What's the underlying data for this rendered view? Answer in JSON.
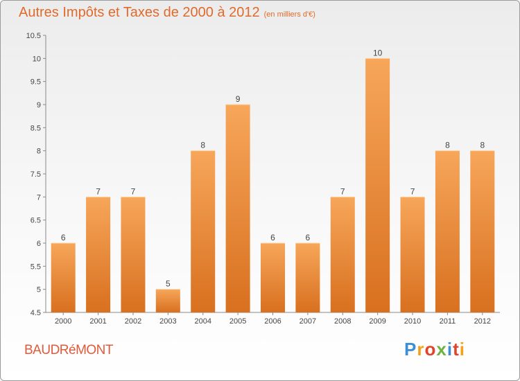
{
  "title": "Autres Impôts et Taxes de 2000 à 2012",
  "title_unit": "(en milliers d'€)",
  "commune": "BAUDRéMONT",
  "logo_text": [
    "P",
    "r",
    "o",
    "x",
    "i",
    "t",
    "i"
  ],
  "colors": {
    "title": "#e06a2b",
    "bar_top": "#f7a65a",
    "bar_bottom": "#d8701f",
    "axis": "#888888"
  },
  "chart_data": {
    "type": "bar",
    "categories": [
      "2000",
      "2001",
      "2002",
      "2003",
      "2004",
      "2005",
      "2006",
      "2007",
      "2008",
      "2009",
      "2010",
      "2011",
      "2012"
    ],
    "values": [
      6,
      7,
      7,
      5,
      8,
      9,
      6,
      6,
      7,
      10,
      7,
      8,
      8
    ],
    "data_labels": [
      "6",
      "7",
      "7",
      "5",
      "8",
      "9",
      "6",
      "6",
      "7",
      "10",
      "7",
      "8",
      "8"
    ],
    "ylim": [
      4.5,
      10.5
    ],
    "yticks": [
      "4.5",
      "5",
      "5.5",
      "6",
      "6.5",
      "7",
      "7.5",
      "8",
      "8.5",
      "9",
      "9.5",
      "10",
      "10.5"
    ],
    "grid": false
  }
}
